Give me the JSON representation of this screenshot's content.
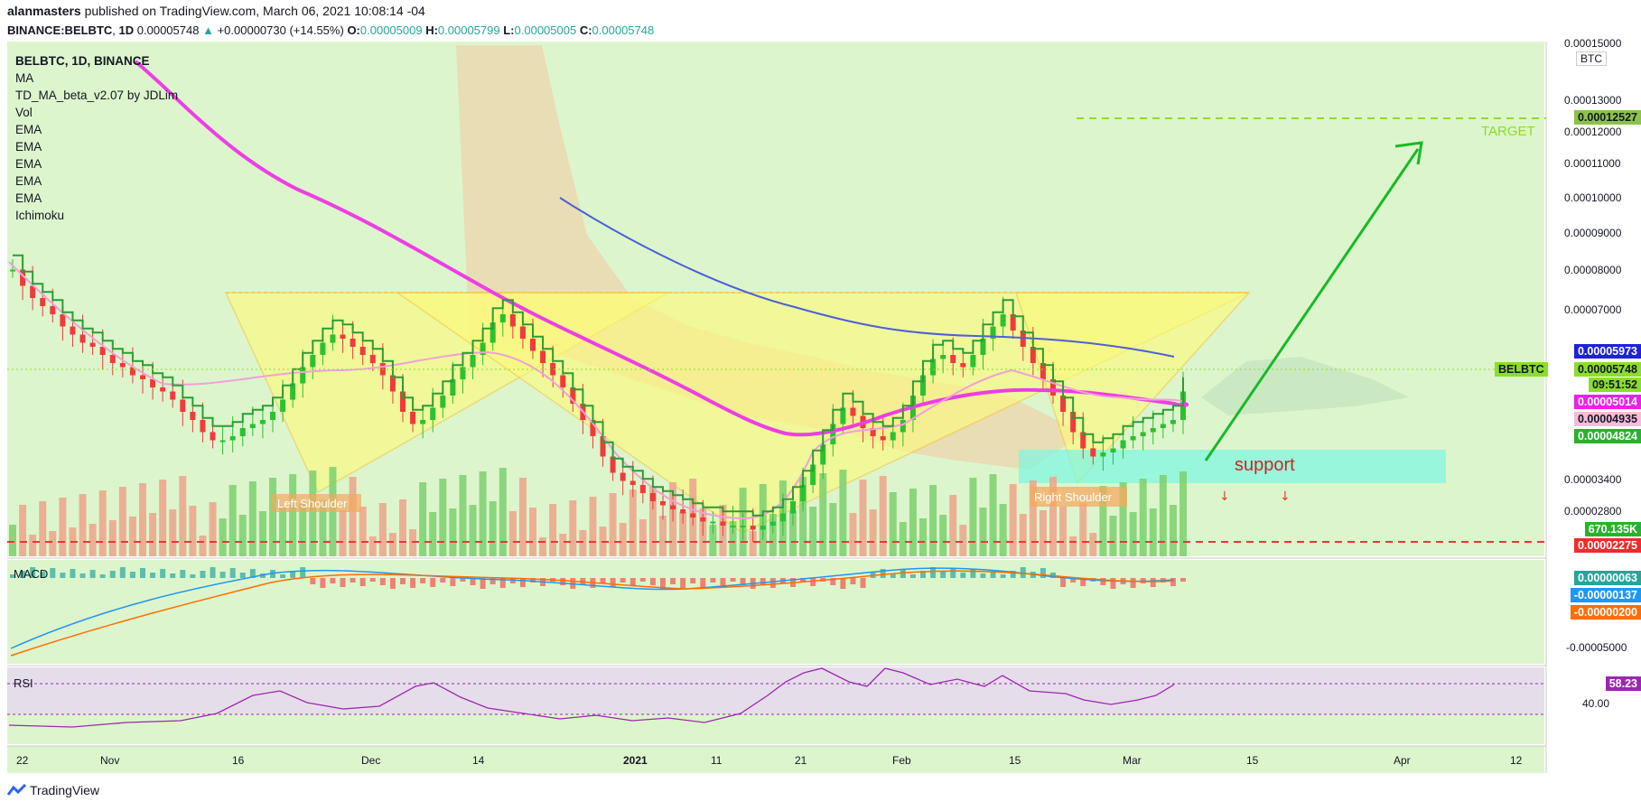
{
  "header": {
    "author": "alanmasters",
    "published": "published on TradingView.com, March 06, 2021 10:08:14 -04",
    "symbol": "BINANCE:BELBTC",
    "interval": "1D",
    "last": "0.00005748",
    "change": "+0.00000730 (+14.55%)",
    "o_label": "O:",
    "o": "0.00005009",
    "h_label": "H:",
    "h": "0.00005799",
    "l_label": "L:",
    "l": "0.00005005",
    "c_label": "C:",
    "c": "0.00005748"
  },
  "legend": {
    "title": "BELBTC, 1D, BINANCE",
    "items": [
      "MA",
      "TD_MA_beta_v2.07 by JDLim",
      "Vol",
      "EMA",
      "EMA",
      "EMA",
      "EMA",
      "EMA",
      "Ichimoku"
    ]
  },
  "annotations": {
    "left_shoulder": "Left Shoulder",
    "right_shoulder": "Right Shoulder",
    "support": "support",
    "target": "TARGET"
  },
  "price_axis": {
    "unit": "BTC",
    "ticks": [
      "0.00015000",
      "0.00013000",
      "0.00012000",
      "0.00011000",
      "0.00010000",
      "0.00009000",
      "0.00008000",
      "0.00007000",
      "0.00003400",
      "0.00002800"
    ],
    "tags": [
      {
        "value": "0.00012527",
        "bg": "#8bc34a",
        "fg": "#131722"
      },
      {
        "value": "0.00005973",
        "bg": "#1e22d8",
        "fg": "#ffffff"
      },
      {
        "value": "0.00005748",
        "bg": "#8bdd2b",
        "fg": "#131722"
      },
      {
        "value": "09:51:52",
        "bg": "#8bdd2b",
        "fg": "#131722"
      },
      {
        "value": "0.00005014",
        "bg": "#ee1fe6",
        "fg": "#ffffff"
      },
      {
        "value": "0.00004935",
        "bg": "#f8bbd9",
        "fg": "#131722"
      },
      {
        "value": "0.00004824",
        "bg": "#2ab12d",
        "fg": "#ffffff"
      },
      {
        "value": "670.135K",
        "bg": "#2ab12d",
        "fg": "#ffffff"
      },
      {
        "value": "0.00002275",
        "bg": "#ef2b2b",
        "fg": "#ffffff"
      }
    ],
    "symbol_tag": "BELBTC"
  },
  "macd": {
    "label": "MACD",
    "tags": [
      {
        "value": "0.00000063",
        "bg": "#26a69a",
        "fg": "#ffffff"
      },
      {
        "value": "-0.00000137",
        "bg": "#2196f3",
        "fg": "#ffffff"
      },
      {
        "value": "-0.00000200",
        "bg": "#ff6d00",
        "fg": "#ffffff"
      }
    ],
    "tick": "-0.00005000"
  },
  "rsi": {
    "label": "RSI",
    "value": "58.23",
    "tick": "40.00"
  },
  "time_axis": [
    "22",
    "Nov",
    "16",
    "Dec",
    "14",
    "2021",
    "11",
    "21",
    "Feb",
    "15",
    "Mar",
    "15",
    "Apr",
    "12"
  ],
  "footer": {
    "brand": "TradingView"
  },
  "chart_data": {
    "type": "candlestick",
    "symbol": "BELBTC",
    "interval": "1D",
    "exchange": "BINANCE",
    "close_series_approx": [
      8.7,
      8.3,
      8.0,
      7.8,
      7.6,
      7.3,
      7.1,
      6.9,
      6.8,
      6.6,
      6.4,
      6.3,
      6.1,
      6.0,
      5.8,
      5.7,
      5.5,
      5.2,
      5.0,
      4.7,
      4.5,
      4.5,
      4.6,
      4.8,
      4.9,
      5.0,
      5.2,
      5.5,
      5.9,
      6.3,
      6.6,
      6.9,
      7.1,
      7.0,
      6.8,
      6.6,
      6.4,
      6.1,
      5.7,
      5.2,
      4.9,
      5.0,
      5.3,
      5.6,
      6.0,
      6.3,
      6.6,
      6.9,
      7.4,
      7.6,
      7.3,
      7.0,
      6.7,
      6.4,
      6.1,
      5.8,
      5.4,
      5.0,
      4.6,
      4.1,
      3.7,
      3.5,
      3.4,
      3.2,
      3.0,
      2.9,
      2.8,
      2.7,
      2.6,
      2.5,
      2.5,
      2.4,
      2.4,
      2.4,
      2.3,
      2.4,
      2.5,
      2.7,
      3.0,
      3.4,
      3.9,
      4.4,
      4.9,
      5.3,
      5.1,
      4.8,
      4.6,
      4.5,
      4.7,
      5.0,
      5.6,
      6.1,
      6.5,
      6.6,
      6.4,
      6.3,
      6.6,
      7.0,
      7.3,
      7.6,
      7.2,
      6.8,
      6.4,
      6.0,
      5.6,
      5.2,
      4.7,
      4.3,
      4.1,
      4.2,
      4.3,
      4.5,
      4.6,
      4.7,
      4.8,
      4.9,
      5.0,
      5.7
    ],
    "volume_peak": "670.135K",
    "levels": {
      "target": "0.00012527",
      "support_line": "0.00002275"
    },
    "rsi_last": 58.23
  }
}
